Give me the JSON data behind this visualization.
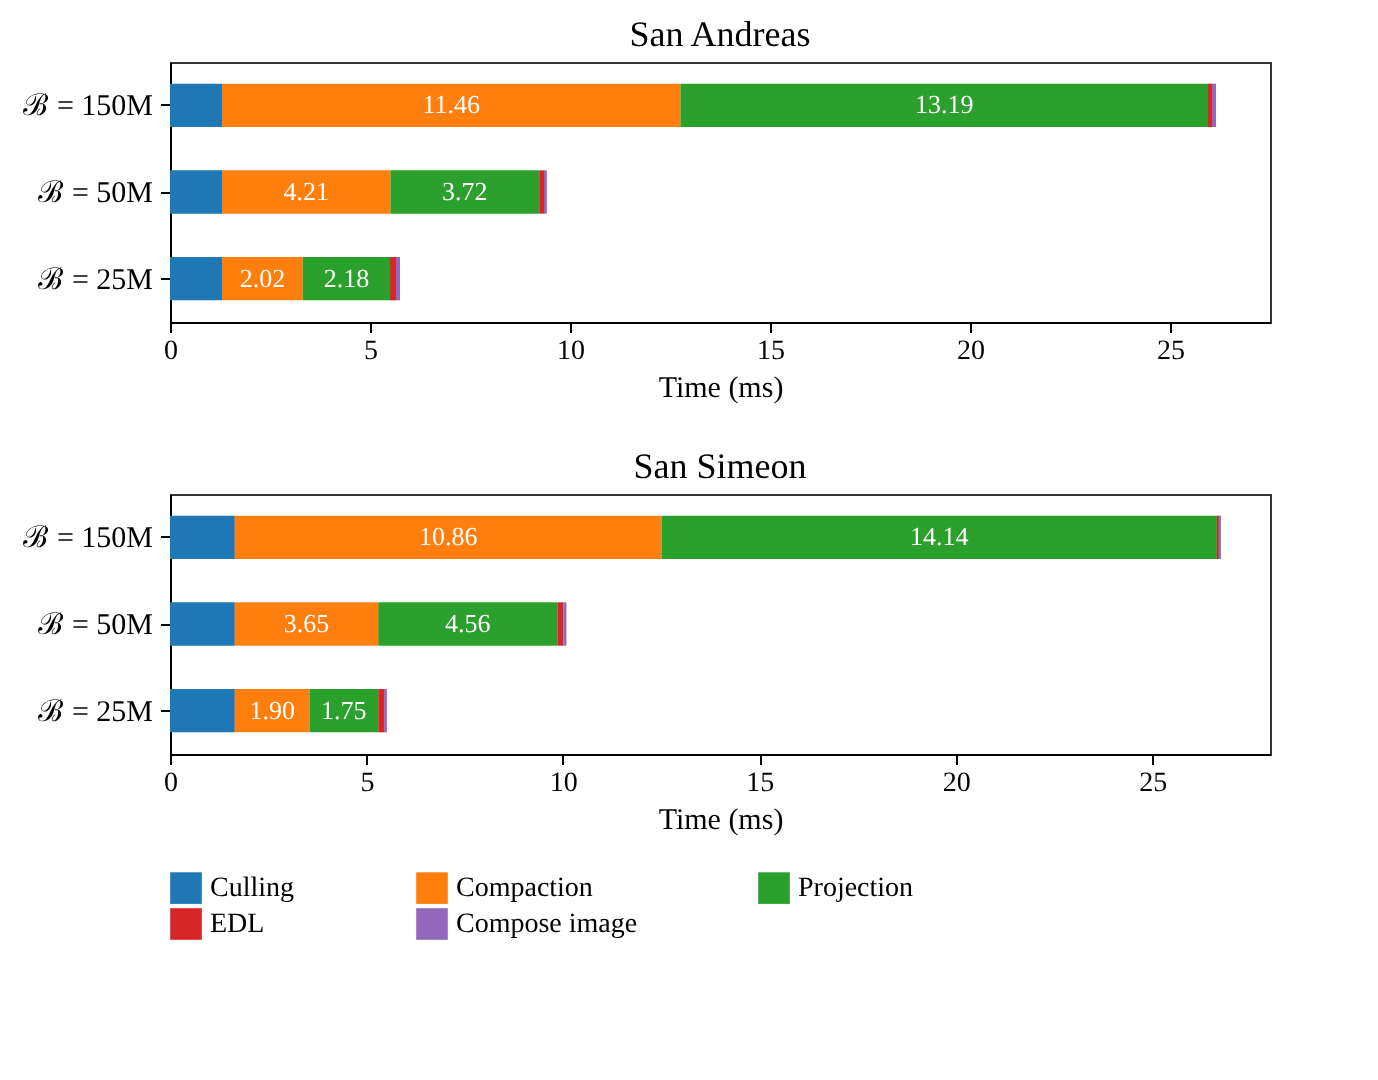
{
  "chart_data": [
    {
      "type": "bar",
      "orientation": "horizontal",
      "stacked": true,
      "title": "San Andreas",
      "xlabel": "Time (ms)",
      "categories": [
        "ℬ = 150M",
        "ℬ = 50M",
        "ℬ = 25M"
      ],
      "xlim": [
        0,
        27.5
      ],
      "xticks": [
        0,
        5,
        10,
        15,
        20,
        25
      ],
      "grid": false,
      "legend": "bottom",
      "series": [
        {
          "name": "Culling",
          "color": "#1f77b4",
          "values": [
            1.3,
            1.3,
            1.3
          ]
        },
        {
          "name": "Compaction",
          "color": "#ff7f0e",
          "values": [
            11.46,
            4.21,
            2.02
          ],
          "value_labels": [
            "11.46",
            "4.21",
            "2.02"
          ]
        },
        {
          "name": "Projection",
          "color": "#2ca02c",
          "values": [
            13.19,
            3.72,
            2.18
          ],
          "value_labels": [
            "13.19",
            "3.72",
            "2.18"
          ]
        },
        {
          "name": "EDL",
          "color": "#d62728",
          "values": [
            0.1,
            0.12,
            0.15
          ]
        },
        {
          "name": "Compose image",
          "color": "#9467bd",
          "values": [
            0.1,
            0.07,
            0.1
          ]
        }
      ]
    },
    {
      "type": "bar",
      "orientation": "horizontal",
      "stacked": true,
      "title": "San Simeon",
      "xlabel": "Time (ms)",
      "categories": [
        "ℬ = 150M",
        "ℬ = 50M",
        "ℬ = 25M"
      ],
      "xlim": [
        0,
        28
      ],
      "xticks": [
        0,
        5,
        10,
        15,
        20,
        25
      ],
      "grid": false,
      "legend": "bottom",
      "series": [
        {
          "name": "Culling",
          "color": "#1f77b4",
          "values": [
            1.65,
            1.65,
            1.65
          ]
        },
        {
          "name": "Compaction",
          "color": "#ff7f0e",
          "values": [
            10.86,
            3.65,
            1.9
          ],
          "value_labels": [
            "10.86",
            "3.65",
            "1.90"
          ]
        },
        {
          "name": "Projection",
          "color": "#2ca02c",
          "values": [
            14.14,
            4.56,
            1.75
          ],
          "value_labels": [
            "14.14",
            "4.56",
            "1.75"
          ]
        },
        {
          "name": "EDL",
          "color": "#d62728",
          "values": [
            0.05,
            0.15,
            0.15
          ]
        },
        {
          "name": "Compose image",
          "color": "#9467bd",
          "values": [
            0.05,
            0.08,
            0.07
          ]
        }
      ]
    }
  ]
}
